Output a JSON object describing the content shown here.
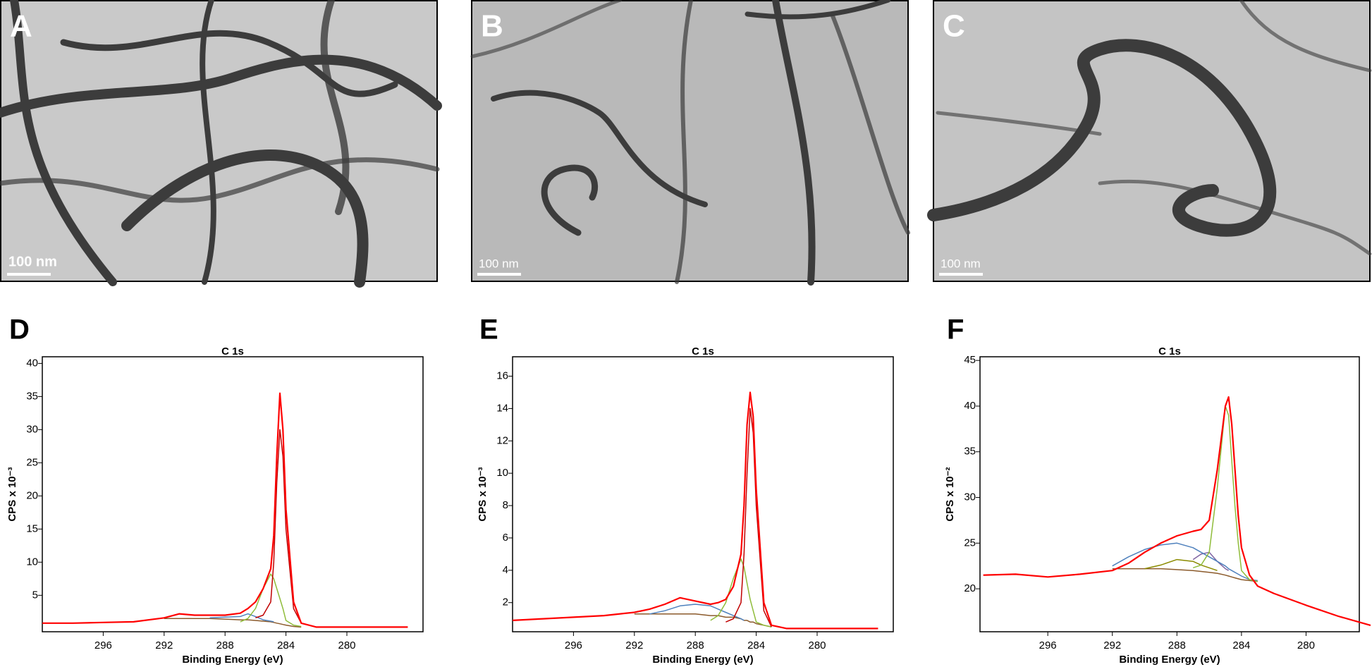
{
  "panels": [
    {
      "label": "A",
      "scale_bar": "100 nm"
    },
    {
      "label": "B",
      "scale_bar": "100 nm"
    },
    {
      "label": "C",
      "scale_bar": "100 nm"
    }
  ],
  "chart_data": [
    {
      "type": "line",
      "panel": "D",
      "title": "C 1s",
      "x_label": "Binding Energy (eV)",
      "y_label": "CPS x 10⁻³",
      "x": [
        300,
        298,
        296,
        294,
        292,
        291,
        290,
        289,
        288,
        287,
        286.5,
        286,
        285.5,
        285,
        284.8,
        284.6,
        284.4,
        284.2,
        284,
        283.5,
        283,
        282,
        280,
        278,
        276
      ],
      "xlim": [
        300,
        275
      ],
      "xticks": [
        296,
        292,
        288,
        284,
        280
      ],
      "ylim": [
        -0.5,
        41
      ],
      "yticks": [
        5,
        10,
        15,
        20,
        25,
        30,
        35,
        40
      ],
      "series": [
        {
          "color": "#8b5a2b",
          "values": [
            null,
            null,
            null,
            null,
            1.5,
            1.5,
            1.5,
            1.5,
            1.4,
            1.3,
            1.3,
            1.2,
            1.1,
            1.0,
            0.9,
            0.8,
            0.7,
            0.6,
            0.5,
            0.3,
            0.2,
            null,
            null,
            null,
            null
          ]
        },
        {
          "color": "#4f81bd",
          "values": [
            null,
            null,
            null,
            null,
            null,
            null,
            null,
            1.6,
            1.7,
            1.8,
            2.2,
            1.8,
            1.3,
            1.1,
            1.0,
            null,
            null,
            null,
            null,
            null,
            null,
            null,
            null,
            null,
            null
          ]
        },
        {
          "color": "#8fbc3a",
          "values": [
            null,
            null,
            null,
            null,
            null,
            null,
            null,
            null,
            null,
            1.0,
            1.5,
            3.0,
            6.0,
            8.2,
            7.5,
            6.0,
            4.5,
            3.0,
            1.2,
            0.5,
            0.3,
            null,
            null,
            null,
            null
          ]
        },
        {
          "color": "#c00000",
          "values": [
            null,
            null,
            null,
            null,
            null,
            null,
            null,
            null,
            null,
            null,
            null,
            1.6,
            2.0,
            4.0,
            10.0,
            22.0,
            30.0,
            26.0,
            15.0,
            3.0,
            0.8,
            null,
            null,
            null,
            null
          ]
        },
        {
          "color": "#ff0000",
          "values": [
            0.8,
            0.8,
            0.9,
            1.0,
            1.6,
            2.2,
            2.0,
            2.0,
            2.0,
            2.3,
            3.0,
            4.0,
            6.0,
            9.0,
            14.0,
            26.0,
            35.5,
            30.0,
            18.0,
            4.0,
            0.8,
            0.2,
            0.2,
            0.2,
            0.2
          ]
        }
      ]
    },
    {
      "type": "line",
      "panel": "E",
      "title": "C 1s",
      "x_label": "Binding Energy (eV)",
      "y_label": "CPS x 10⁻³",
      "x": [
        300,
        298,
        296,
        294,
        292,
        291,
        290,
        289,
        288,
        287,
        286.5,
        286,
        285.5,
        285,
        284.8,
        284.6,
        284.4,
        284.2,
        284,
        283.5,
        283,
        282,
        280,
        278,
        276
      ],
      "xlim": [
        300,
        275
      ],
      "xticks": [
        296,
        292,
        288,
        284,
        280
      ],
      "ylim": [
        0.2,
        17.2
      ],
      "yticks": [
        2,
        4,
        6,
        8,
        10,
        12,
        14,
        16
      ],
      "series": [
        {
          "color": "#8b5a2b",
          "values": [
            null,
            null,
            null,
            null,
            1.3,
            1.3,
            1.3,
            1.3,
            1.3,
            1.2,
            1.2,
            1.1,
            1.1,
            1.0,
            0.9,
            0.9,
            0.8,
            0.8,
            0.7,
            0.6,
            0.5,
            null,
            null,
            null,
            null
          ]
        },
        {
          "color": "#4f81bd",
          "values": [
            null,
            null,
            null,
            null,
            null,
            1.3,
            1.5,
            1.8,
            1.9,
            1.8,
            1.6,
            1.4,
            1.2,
            1.0,
            0.9,
            null,
            null,
            null,
            null,
            null,
            null,
            null,
            null,
            null,
            null
          ]
        },
        {
          "color": "#8fbc3a",
          "values": [
            null,
            null,
            null,
            null,
            null,
            null,
            null,
            null,
            null,
            0.9,
            1.2,
            2.0,
            3.5,
            4.7,
            4.2,
            3.2,
            2.2,
            1.5,
            0.8,
            0.6,
            0.5,
            null,
            null,
            null,
            null
          ]
        },
        {
          "color": "#c00000",
          "values": [
            null,
            null,
            null,
            null,
            null,
            null,
            null,
            null,
            null,
            null,
            null,
            0.8,
            1.0,
            2.0,
            5.0,
            10.0,
            14.0,
            12.5,
            8.0,
            1.5,
            0.5,
            null,
            null,
            null,
            null
          ]
        },
        {
          "color": "#ff0000",
          "values": [
            0.9,
            1.0,
            1.1,
            1.2,
            1.4,
            1.6,
            1.9,
            2.3,
            2.1,
            1.9,
            2.0,
            2.2,
            3.0,
            5.0,
            8.0,
            13.0,
            15.0,
            13.5,
            9.0,
            2.0,
            0.6,
            0.4,
            0.4,
            0.4,
            0.4
          ]
        }
      ]
    },
    {
      "type": "line",
      "panel": "F",
      "title": "C 1s",
      "x_label": "Binding Energy (eV)",
      "y_label": "CPS x 10⁻²",
      "x": [
        300,
        298,
        296,
        294,
        292,
        291,
        290,
        289,
        288,
        287,
        286.5,
        286,
        285.5,
        285,
        284.8,
        284.6,
        284.4,
        284.2,
        284,
        283.5,
        283,
        282,
        280,
        278,
        276
      ],
      "xlim": [
        300.2,
        276.7
      ],
      "xticks": [
        296,
        292,
        288,
        284,
        280
      ],
      "ylim": [
        15.3,
        45.4
      ],
      "yticks": [
        20,
        25,
        30,
        35,
        40,
        45
      ],
      "series": [
        {
          "color": "#8b5a2b",
          "values": [
            null,
            null,
            null,
            null,
            22.2,
            22.2,
            22.2,
            22.2,
            22.1,
            22.0,
            21.9,
            21.8,
            21.7,
            21.5,
            21.4,
            21.3,
            21.2,
            21.1,
            21.0,
            20.9,
            20.8,
            null,
            null,
            null,
            null
          ]
        },
        {
          "color": "#8b8b00",
          "values": [
            null,
            null,
            null,
            null,
            null,
            null,
            22.2,
            22.6,
            23.2,
            23.0,
            22.6,
            22.3,
            22.0,
            null,
            null,
            null,
            null,
            null,
            null,
            null,
            null,
            null,
            null,
            null,
            null
          ]
        },
        {
          "color": "#8064a2",
          "values": [
            null,
            null,
            null,
            null,
            null,
            null,
            null,
            null,
            null,
            23.2,
            23.8,
            24.0,
            23.0,
            22.2,
            22.0,
            null,
            null,
            null,
            null,
            null,
            null,
            null,
            null,
            null,
            null
          ]
        },
        {
          "color": "#4f81bd",
          "values": [
            null,
            null,
            null,
            null,
            22.5,
            23.5,
            24.3,
            24.8,
            25.0,
            24.5,
            24.0,
            23.5,
            23.0,
            22.5,
            22.2,
            22.0,
            21.8,
            21.6,
            21.4,
            21.0,
            20.9,
            null,
            null,
            null,
            null
          ]
        },
        {
          "color": "#8fbc3a",
          "values": [
            null,
            null,
            null,
            null,
            null,
            null,
            null,
            null,
            null,
            22.3,
            22.6,
            24.0,
            31.0,
            40.0,
            39.0,
            34.0,
            29.0,
            25.0,
            22.0,
            21.0,
            20.8,
            null,
            null,
            null,
            null
          ]
        },
        {
          "color": "#ff0000",
          "values": [
            21.5,
            21.6,
            21.3,
            21.6,
            22.0,
            22.8,
            24.0,
            25.0,
            25.8,
            26.3,
            26.5,
            27.5,
            33.0,
            40.0,
            41.0,
            38.0,
            33.0,
            28.0,
            24.5,
            21.5,
            20.3,
            19.5,
            18.2,
            17.0,
            16.0
          ]
        }
      ]
    }
  ]
}
